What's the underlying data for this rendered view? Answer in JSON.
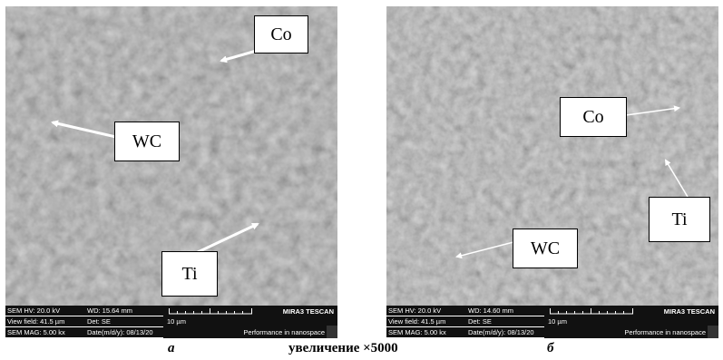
{
  "panel_a": {
    "labels": {
      "co": "Co",
      "wc": "WC",
      "ti": "Ti"
    },
    "info": {
      "hv": "SEM HV: 20.0 kV",
      "wd": "WD: 15.64 mm",
      "view_field": "View field: 41.5 µm",
      "det": "Det: SE",
      "mag": "SEM MAG: 5.00 kx",
      "date": "Date(m/d/y): 08/13/20",
      "scale": "10 µm",
      "brand": "MIRA3 TESCAN",
      "perf": "Performance in nanospace"
    },
    "caption": "а"
  },
  "panel_b": {
    "labels": {
      "co": "Co",
      "wc": "WC",
      "ti": "Ti"
    },
    "info": {
      "hv": "SEM HV: 20.0 kV",
      "wd": "WD: 14.60 mm",
      "view_field": "View field: 41.5 µm",
      "det": "Det: SE",
      "mag": "SEM MAG: 5.00 kx",
      "date": "Date(m/d/y): 08/13/20",
      "scale": "10 µm",
      "brand": "MIRA3 TESCAN",
      "perf": "Performance in nanospace"
    },
    "caption": "б"
  },
  "center_caption": "увеличение ×5000",
  "colors": {
    "info_bar": "#111111",
    "label_bg": "#ffffff",
    "arrow": "#ffffff"
  }
}
